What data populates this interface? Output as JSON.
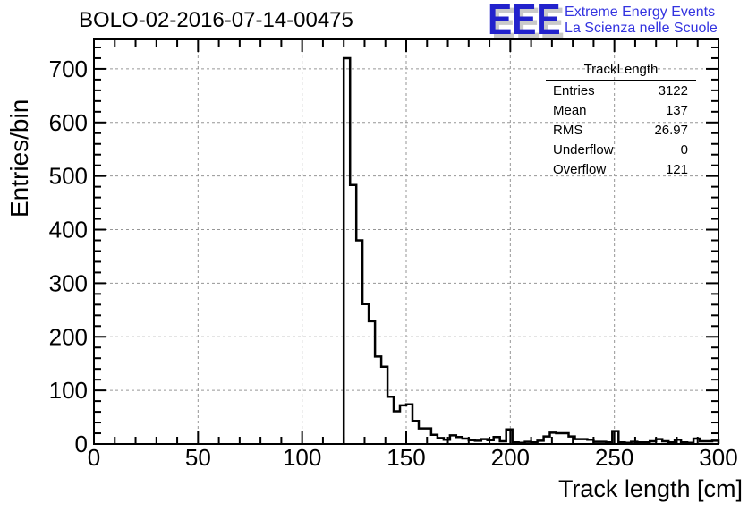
{
  "header": {
    "title": "BOLO-02-2016-07-14-00475",
    "logo": {
      "acronym": "EEE",
      "line1": "Extreme Energy Events",
      "line2": "La Scienza nelle Scuole",
      "blue": "#2222cc",
      "text_blue": "#3333e0",
      "shadow_gray": "#c9c9c9"
    }
  },
  "stats_box": {
    "title": "TrackLength",
    "rows": [
      {
        "label": "Entries",
        "value": "3122"
      },
      {
        "label": "Mean",
        "value": "137"
      },
      {
        "label": "RMS",
        "value": "26.97"
      },
      {
        "label": "Underflow",
        "value": "0"
      },
      {
        "label": "Overflow",
        "value": "121"
      }
    ]
  },
  "chart_data": {
    "type": "bar",
    "style": "step-outline-histogram",
    "title": "BOLO-02-2016-07-14-00475",
    "xlabel": "Track length [cm]",
    "ylabel": "Entries/bin",
    "xlim": [
      0,
      300
    ],
    "ylim": [
      0,
      755
    ],
    "x_ticks": [
      0,
      50,
      100,
      150,
      200,
      250,
      300
    ],
    "y_ticks": [
      0,
      100,
      200,
      300,
      400,
      500,
      600,
      700
    ],
    "x_minor_step": 10,
    "y_minor_step": 20,
    "grid": true,
    "grid_color": "#969696",
    "line_color": "#000000",
    "bins": {
      "start": 120,
      "width": 3,
      "values": [
        720,
        483,
        380,
        261,
        229,
        163,
        144,
        88,
        61,
        72,
        74,
        43,
        29,
        29,
        17,
        11,
        8,
        16,
        13,
        10,
        7,
        6,
        9,
        7,
        13,
        5,
        27,
        3,
        2,
        4,
        3,
        6,
        14,
        21,
        20,
        20,
        14,
        9,
        9,
        8,
        4,
        4,
        3,
        24,
        3,
        2,
        4,
        3,
        3,
        5,
        9,
        5,
        3,
        8,
        3,
        2,
        10,
        5,
        5,
        6
      ]
    }
  }
}
